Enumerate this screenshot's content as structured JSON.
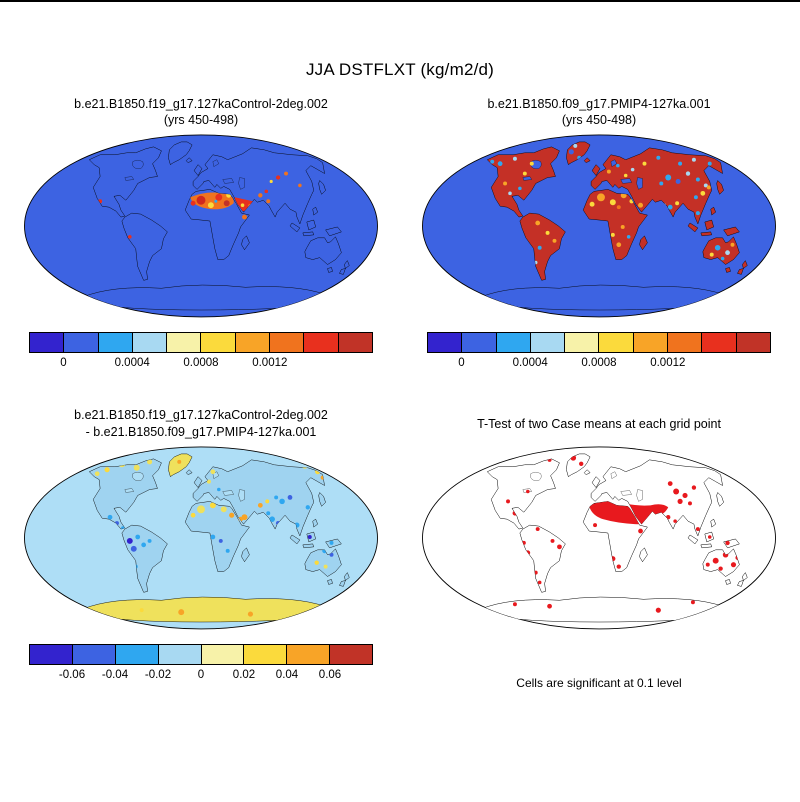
{
  "figure": {
    "title": "JJA DSTFLXT (kg/m2/d)",
    "background": "#ffffff"
  },
  "panels": [
    {
      "id": "control",
      "title_line1": "b.e21.B1850.f19_g17.127kaControl-2deg.002",
      "title_line2": "(yrs 450-498)"
    },
    {
      "id": "pmip4",
      "title_line1": "b.e21.B1850.f09_g17.PMIP4-127ka.001",
      "title_line2": "(yrs 450-498)"
    },
    {
      "id": "difference",
      "title_line1": "b.e21.B1850.f19_g17.127kaControl-2deg.002",
      "title_line2": "- b.e21.B1850.f09_g17.PMIP4-127ka.001"
    },
    {
      "id": "ttest",
      "title_line1": "T-Test of two Case means at each grid point",
      "caption": "Cells are significant at 0.1 level"
    }
  ],
  "chart_data": [
    {
      "type": "heatmap",
      "panel": "top-left",
      "title": "b.e21.B1850.f19_g17.127kaControl-2deg.002",
      "subtitle": "(yrs 450-498)",
      "variable": "JJA DSTFLXT",
      "units": "kg/m2/d",
      "projection": "global oval (Robinson-style) map",
      "colorbar": {
        "n_segments": 10,
        "colors": [
          "#3323CE",
          "#3D63E2",
          "#2FA7F0",
          "#A8D9F2",
          "#F7F2A9",
          "#FBDA3C",
          "#F8A427",
          "#F0731E",
          "#E8301E",
          "#C13327"
        ],
        "tick_labels": [
          "0",
          "0.0004",
          "0.0008",
          "0.0012"
        ],
        "tick_positions": [
          0.1,
          0.3,
          0.5,
          0.7
        ],
        "bin_width": 0.0002
      },
      "pattern_summary": "Dust flux near zero (royal blue, 0-0.0002) over oceans and most land; maxima 0.0006-0.0014+ (yellow/orange/red) over the Sahara, Arabian Peninsula, Horn of Africa, Iran and Central Asia; isolated high spots over Mexico and the Andes."
    },
    {
      "type": "heatmap",
      "panel": "top-right",
      "title": "b.e21.B1850.f09_g17.PMIP4-127ka.001",
      "subtitle": "(yrs 450-498)",
      "variable": "JJA DSTFLXT",
      "units": "kg/m2/d",
      "projection": "global oval (Robinson-style) map",
      "colorbar": {
        "n_segments": 10,
        "colors": [
          "#3323CE",
          "#3D63E2",
          "#2FA7F0",
          "#A8D9F2",
          "#F7F2A9",
          "#FBDA3C",
          "#F8A427",
          "#F0731E",
          "#E8301E",
          "#C13327"
        ],
        "tick_labels": [
          "0",
          "0.0004",
          "0.0008",
          "0.0012"
        ],
        "tick_positions": [
          0.1,
          0.3,
          0.5,
          0.7
        ],
        "bin_width": 0.0002
      },
      "pattern_summary": "Dust flux above ~0.0014 (dark red) over nearly all continents; scattered lower-value cells (cyan, pale blue, yellow, orange) across the Sahara, Eurasia, the Americas and Australia; oceans and Antarctica near zero (royal blue)."
    },
    {
      "type": "heatmap",
      "panel": "bottom-left",
      "title": "b.e21.B1850.f19_g17.127kaControl-2deg.002",
      "subtitle": "- b.e21.B1850.f09_g17.PMIP4-127ka.001",
      "variable": "JJA DSTFLXT difference",
      "units": "kg/m2/d",
      "projection": "global oval (Robinson-style) map",
      "colorbar": {
        "n_segments": 8,
        "colors": [
          "#3323CE",
          "#3D63E2",
          "#2FA7F0",
          "#A8D9F2",
          "#F7F2A9",
          "#FBDA3C",
          "#F8A427",
          "#C13327"
        ],
        "tick_labels": [
          "-0.06",
          "-0.04",
          "-0.02",
          "0",
          "0.02",
          "0.04",
          "0.06"
        ],
        "tick_positions": [
          0.125,
          0.25,
          0.375,
          0.5,
          0.625,
          0.75,
          0.875
        ],
        "bin_width": 0.02
      },
      "pattern_summary": "Differences mostly slightly negative (pale blue, -0.02 to 0) worldwide; stronger negative values (blue to dark blue/indigo) over tropical South America, Central America, India, Tibet and Southeast Asia; weak positive values (pale yellow to orange) over Greenland, northern Canada, northeast Siberia, the Sahara, Arabia and Antarctica."
    },
    {
      "type": "heatmap",
      "panel": "bottom-right",
      "title": "T-Test of two Case means at each grid point",
      "caption": "Cells are significant at 0.1 level",
      "significance_color": "#E8191E",
      "pattern_summary": "Significant cells (red) concentrated over the Sahara, Arabian Peninsula, Middle East and Central Asia, with smaller clusters over Australia, western South America, southern Africa, Greenland and the Antarctic coast; elsewhere not significant (white)."
    }
  ]
}
